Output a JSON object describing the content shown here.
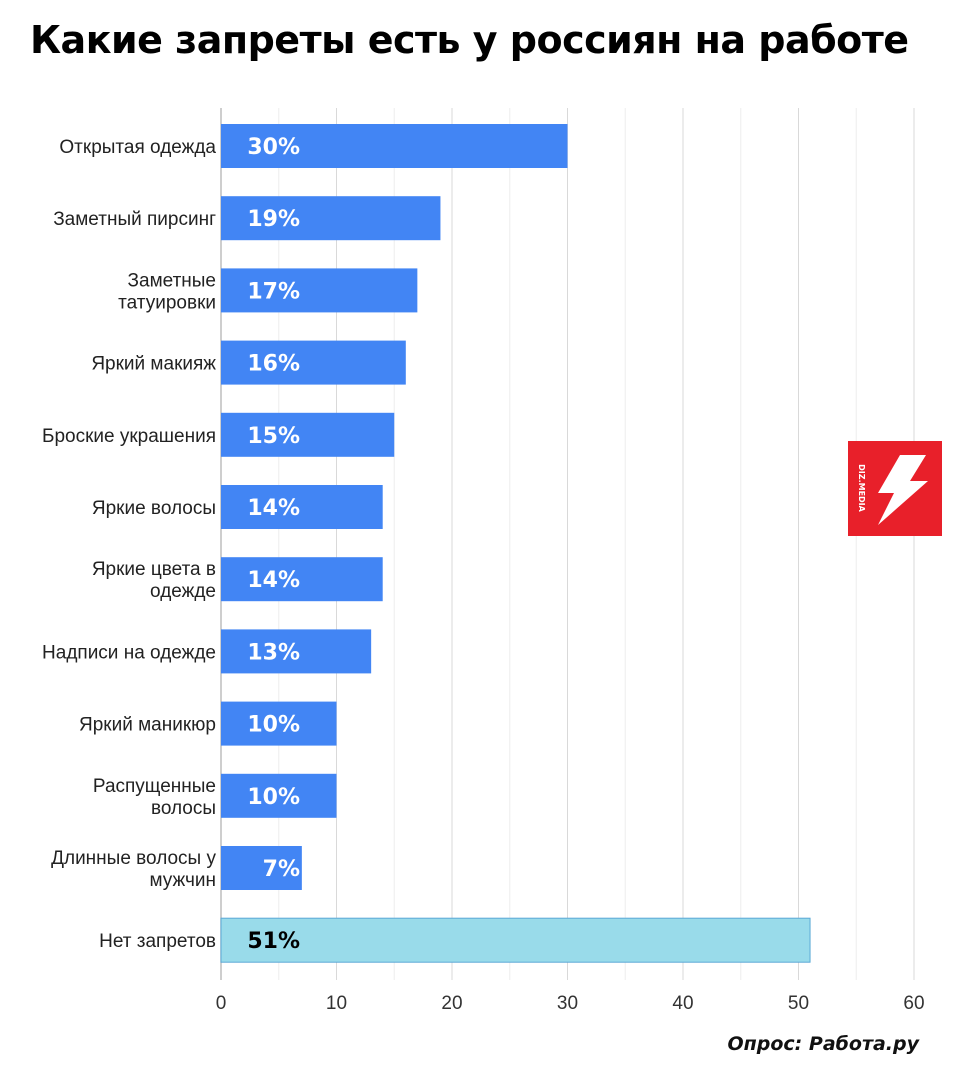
{
  "title": "Какие запреты есть у россиян на работе",
  "source": "Опрос: Работа.ру",
  "logo_text": "DIZ.MEDIA",
  "colors": {
    "bar": "#4285f4",
    "bar_highlight": "#99dbea",
    "label_on_bar": "#ffffff",
    "label_on_highlight": "#000000",
    "logo_bg": "#e8202a",
    "grid": "#d9d9d9"
  },
  "chart_data": {
    "type": "bar",
    "orientation": "horizontal",
    "title": "Какие запреты есть у россиян на работе",
    "xlabel": "",
    "ylabel": "",
    "xlim": [
      0,
      60
    ],
    "xticks": [
      0,
      10,
      20,
      30,
      40,
      50,
      60
    ],
    "grid": true,
    "categories": [
      [
        "Открытая одежда"
      ],
      [
        "Заметный пирсинг"
      ],
      [
        "Заметные",
        "татуировки"
      ],
      [
        "Яркий макияж"
      ],
      [
        "Броские украшения"
      ],
      [
        "Яркие волосы"
      ],
      [
        "Яркие цвета в",
        "одежде"
      ],
      [
        "Надписи на одежде"
      ],
      [
        "Яркий маникюр"
      ],
      [
        "Распущенные",
        "волосы"
      ],
      [
        "Длинные волосы у",
        "мужчин"
      ],
      [
        "Нет запретов"
      ]
    ],
    "values": [
      30,
      19,
      17,
      16,
      15,
      14,
      14,
      13,
      10,
      10,
      7,
      51
    ],
    "data_labels": [
      "30%",
      "19%",
      "17%",
      "16%",
      "15%",
      "14%",
      "14%",
      "13%",
      "10%",
      "10%",
      "7%",
      "51%"
    ],
    "highlight_index": 11
  }
}
